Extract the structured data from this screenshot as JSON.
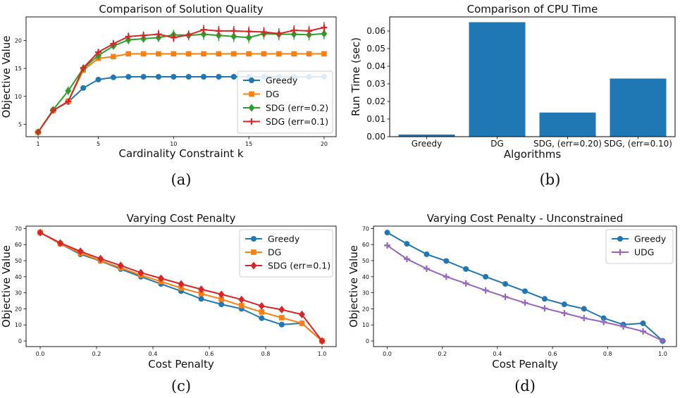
{
  "chart_data": [
    {
      "id": "a",
      "type": "line",
      "caption": "(a)",
      "title": "Comparison of Solution Quality",
      "xlabel": "Cardinality Constraint k",
      "ylabel": "Objective Value",
      "xlim": [
        0.2,
        20.8
      ],
      "ylim": [
        2.8,
        24.2
      ],
      "xticks": [
        1,
        5,
        10,
        15,
        20
      ],
      "yticks": [
        5,
        10,
        15,
        20
      ],
      "grid": false,
      "legend": "lower-right",
      "x": [
        1,
        2,
        3,
        4,
        5,
        6,
        7,
        8,
        9,
        10,
        11,
        12,
        13,
        14,
        15,
        16,
        17,
        18,
        19,
        20
      ],
      "series": [
        {
          "name": "Greedy",
          "color": "#1f77b4",
          "marker": "circle",
          "values": [
            3.6,
            7.5,
            9.0,
            11.5,
            13.0,
            13.4,
            13.5,
            13.5,
            13.5,
            13.5,
            13.5,
            13.5,
            13.5,
            13.5,
            13.5,
            13.5,
            13.5,
            13.5,
            13.5,
            13.5
          ]
        },
        {
          "name": "DG",
          "color": "#ff7f0e",
          "marker": "square",
          "values": [
            3.6,
            7.5,
            9.1,
            14.7,
            16.8,
            17.1,
            17.6,
            17.6,
            17.6,
            17.6,
            17.6,
            17.6,
            17.6,
            17.6,
            17.6,
            17.6,
            17.6,
            17.6,
            17.6,
            17.6
          ]
        },
        {
          "name": "SDG (err=0.2)",
          "color": "#2ca02c",
          "marker": "diamond",
          "values": [
            3.6,
            7.6,
            11.0,
            15.0,
            17.3,
            19.0,
            20.1,
            20.3,
            20.5,
            21.0,
            20.9,
            21.1,
            20.9,
            20.7,
            20.5,
            21.2,
            21.1,
            21.1,
            21.0,
            21.2
          ],
          "errors": [
            0.2,
            0.3,
            0.8,
            0.6,
            0.7,
            0.6,
            0.8,
            0.7,
            0.8,
            0.9,
            0.9,
            1.0,
            1.0,
            1.0,
            1.0,
            1.0,
            1.1,
            1.0,
            1.0,
            1.0
          ]
        },
        {
          "name": "SDG (err=0.1)",
          "color": "#d62728",
          "marker": "plus",
          "values": [
            3.6,
            7.5,
            9.1,
            15.1,
            17.9,
            19.4,
            20.7,
            20.9,
            21.1,
            20.5,
            21.0,
            21.9,
            21.7,
            21.7,
            21.6,
            21.5,
            21.2,
            21.8,
            21.7,
            22.3
          ],
          "errors": [
            0.2,
            0.3,
            0.4,
            0.5,
            0.6,
            0.7,
            0.7,
            0.7,
            0.8,
            0.8,
            0.8,
            0.9,
            0.9,
            0.9,
            0.9,
            0.9,
            0.9,
            0.9,
            0.9,
            1.0
          ]
        }
      ]
    },
    {
      "id": "b",
      "type": "bar",
      "caption": "(b)",
      "title": "Comparison of CPU Time",
      "xlabel": "Algorithms",
      "ylabel": "Run Time (sec)",
      "ylim": [
        0,
        0.068
      ],
      "yticks": [
        0.0,
        0.01,
        0.02,
        0.03,
        0.04,
        0.05,
        0.06
      ],
      "ytick_labels": [
        "0.00",
        "0.01",
        "0.02",
        "0.03",
        "0.04",
        "0.05",
        "0.06"
      ],
      "grid": false,
      "color": "#1f77b4",
      "categories": [
        "Greedy",
        "DG",
        "SDG, (err=0.20)",
        "SDG, (err=0.10)"
      ],
      "values": [
        0.0012,
        0.065,
        0.0137,
        0.033
      ]
    },
    {
      "id": "c",
      "type": "line",
      "caption": "(c)",
      "title": "Varying Cost Penalty",
      "xlabel": "Cost Penalty",
      "ylabel": "Objective Value",
      "xlim": [
        -0.05,
        1.05
      ],
      "ylim": [
        -3.5,
        71.5
      ],
      "xticks": [
        0.0,
        0.2,
        0.4,
        0.6,
        0.8,
        1.0
      ],
      "xtick_labels": [
        "0.0",
        "0.2",
        "0.4",
        "0.6",
        "0.8",
        "1.0"
      ],
      "yticks": [
        0,
        10,
        20,
        30,
        40,
        50,
        60,
        70
      ],
      "grid": false,
      "legend": "top-right",
      "x": [
        0.0,
        0.0714,
        0.1429,
        0.2143,
        0.2857,
        0.3571,
        0.4286,
        0.5,
        0.5714,
        0.6429,
        0.7143,
        0.7857,
        0.8571,
        0.9286,
        1.0
      ],
      "series": [
        {
          "name": "Greedy",
          "color": "#1f77b4",
          "marker": "circle",
          "values": [
            67.5,
            60.5,
            54.0,
            49.8,
            44.8,
            40.0,
            35.5,
            31.0,
            26.2,
            22.8,
            20.0,
            14.2,
            10.2,
            11.0,
            0.0
          ]
        },
        {
          "name": "DG",
          "color": "#ff7f0e",
          "marker": "square",
          "values": [
            67.5,
            60.5,
            54.8,
            50.0,
            45.5,
            41.0,
            37.0,
            33.0,
            29.5,
            26.0,
            22.0,
            18.0,
            14.5,
            11.0,
            0.0
          ]
        },
        {
          "name": "SDG (err=0.1)",
          "color": "#d62728",
          "marker": "diamond",
          "values": [
            67.5,
            61.0,
            55.8,
            51.2,
            47.0,
            42.5,
            39.0,
            35.5,
            32.2,
            29.0,
            25.8,
            21.8,
            19.5,
            16.5,
            0.0
          ]
        }
      ]
    },
    {
      "id": "d",
      "type": "line",
      "caption": "(d)",
      "title": "Varying Cost Penalty - Unconstrained",
      "xlabel": "Cost Penalty",
      "ylabel": "Objective Value",
      "xlim": [
        -0.05,
        1.05
      ],
      "ylim": [
        -3.5,
        71.5
      ],
      "xticks": [
        0.0,
        0.2,
        0.4,
        0.6,
        0.8,
        1.0
      ],
      "xtick_labels": [
        "0.0",
        "0.2",
        "0.4",
        "0.6",
        "0.8",
        "1.0"
      ],
      "yticks": [
        0,
        10,
        20,
        30,
        40,
        50,
        60,
        70
      ],
      "grid": false,
      "legend": "top-right",
      "x": [
        0.0,
        0.0714,
        0.1429,
        0.2143,
        0.2857,
        0.3571,
        0.4286,
        0.5,
        0.5714,
        0.6429,
        0.7143,
        0.7857,
        0.8571,
        0.9286,
        1.0
      ],
      "series": [
        {
          "name": "Greedy",
          "color": "#1f77b4",
          "marker": "circle",
          "values": [
            67.5,
            60.5,
            54.0,
            49.8,
            44.8,
            40.0,
            35.5,
            31.0,
            26.2,
            22.8,
            20.0,
            14.2,
            10.2,
            11.0,
            0.0
          ]
        },
        {
          "name": "UDG",
          "color": "#9467bd",
          "marker": "plus",
          "values": [
            59.5,
            51.0,
            45.0,
            40.0,
            35.8,
            31.5,
            27.5,
            23.8,
            20.3,
            17.3,
            14.2,
            11.8,
            9.0,
            6.0,
            0.0
          ]
        }
      ]
    }
  ]
}
